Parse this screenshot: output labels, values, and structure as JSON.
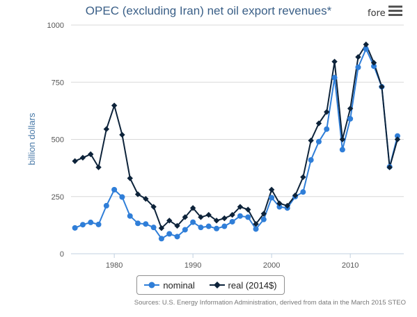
{
  "brand": "fore",
  "source": "Sources: U.S. Energy Information Administration, derived from data in the March 2015 STEO",
  "chart_data": {
    "type": "line",
    "title": "OPEC (excluding Iran) net oil export revenues*",
    "ylabel": "billion dollars",
    "xlabel": "",
    "xlim": [
      1974.5,
      2016.8
    ],
    "ylim": [
      0,
      1000
    ],
    "yticks": [
      0,
      250,
      500,
      750,
      1000
    ],
    "xticks": [
      1980,
      1990,
      2000,
      2010
    ],
    "grid": "horizontal",
    "legend": "bottom-center",
    "x": [
      1975,
      1976,
      1977,
      1978,
      1979,
      1980,
      1981,
      1982,
      1983,
      1984,
      1985,
      1986,
      1987,
      1988,
      1989,
      1990,
      1991,
      1992,
      1993,
      1994,
      1995,
      1996,
      1997,
      1998,
      1999,
      2000,
      2001,
      2002,
      2003,
      2004,
      2005,
      2006,
      2007,
      2008,
      2009,
      2010,
      2011,
      2012,
      2013,
      2014,
      2015,
      2016
    ],
    "series": [
      {
        "name": "nominal",
        "color": "#2f7ed8",
        "values": [
          113,
          127,
          137,
          128,
          210,
          280,
          248,
          165,
          133,
          130,
          115,
          66,
          87,
          75,
          105,
          138,
          115,
          120,
          110,
          120,
          140,
          165,
          160,
          108,
          150,
          245,
          205,
          200,
          250,
          270,
          410,
          490,
          545,
          770,
          455,
          590,
          815,
          895,
          820,
          730,
          380,
          515
        ]
      },
      {
        "name": "real (2014$)",
        "color": "#0d233a",
        "values": [
          405,
          420,
          435,
          378,
          545,
          648,
          520,
          330,
          260,
          240,
          205,
          112,
          145,
          122,
          160,
          200,
          160,
          170,
          145,
          155,
          170,
          205,
          193,
          130,
          175,
          280,
          220,
          210,
          255,
          335,
          495,
          570,
          620,
          840,
          500,
          635,
          860,
          915,
          835,
          730,
          378,
          500
        ]
      }
    ]
  }
}
